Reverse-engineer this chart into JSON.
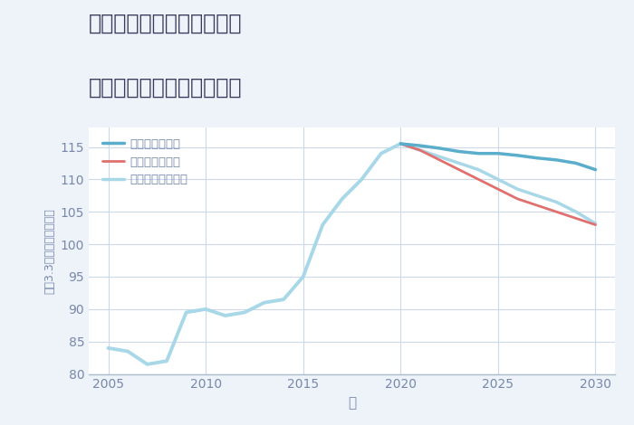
{
  "title_line1": "兵庫県姫路市広畑区鶴町の",
  "title_line2": "中古マンションの価格推移",
  "xlabel": "年",
  "ylabel": "平（3.3㎡）単価（万円）",
  "xlim": [
    2004,
    2031
  ],
  "ylim": [
    80,
    118
  ],
  "yticks": [
    80,
    85,
    90,
    95,
    100,
    105,
    110,
    115
  ],
  "xticks": [
    2005,
    2010,
    2015,
    2020,
    2025,
    2030
  ],
  "bg_color": "#eef3fa",
  "plot_bg_color": "#ffffff",
  "grid_color": "#ccd9ec",
  "legend_labels": [
    "グッドシナリオ",
    "バッドシナリオ",
    "ノーマルシナリオ"
  ],
  "good_color": "#5aaecc",
  "bad_color": "#e07070",
  "normal_color": "#a8d8e8",
  "historical_years": [
    2005,
    2006,
    2007,
    2008,
    2009,
    2010,
    2011,
    2012,
    2013,
    2014,
    2015,
    2016,
    2017,
    2018,
    2019,
    2020
  ],
  "historical_values": [
    84.0,
    83.5,
    81.5,
    82.0,
    89.5,
    90.0,
    89.0,
    89.5,
    91.0,
    91.5,
    95.0,
    103.0,
    107.0,
    110.0,
    114.0,
    115.5
  ],
  "future_years": [
    2020,
    2021,
    2022,
    2023,
    2024,
    2025,
    2026,
    2027,
    2028,
    2029,
    2030
  ],
  "good_values": [
    115.5,
    115.2,
    114.8,
    114.3,
    114.0,
    114.0,
    113.7,
    113.3,
    113.0,
    112.5,
    111.5
  ],
  "bad_values": [
    115.5,
    114.5,
    113.0,
    111.5,
    110.0,
    108.5,
    107.0,
    106.0,
    105.0,
    104.0,
    103.0
  ],
  "normal_values": [
    115.5,
    114.5,
    113.5,
    112.5,
    111.5,
    110.0,
    108.5,
    107.5,
    106.5,
    105.0,
    103.2
  ],
  "title_color": "#3a3a5c",
  "axis_color": "#7788aa",
  "tick_color": "#7788aa"
}
